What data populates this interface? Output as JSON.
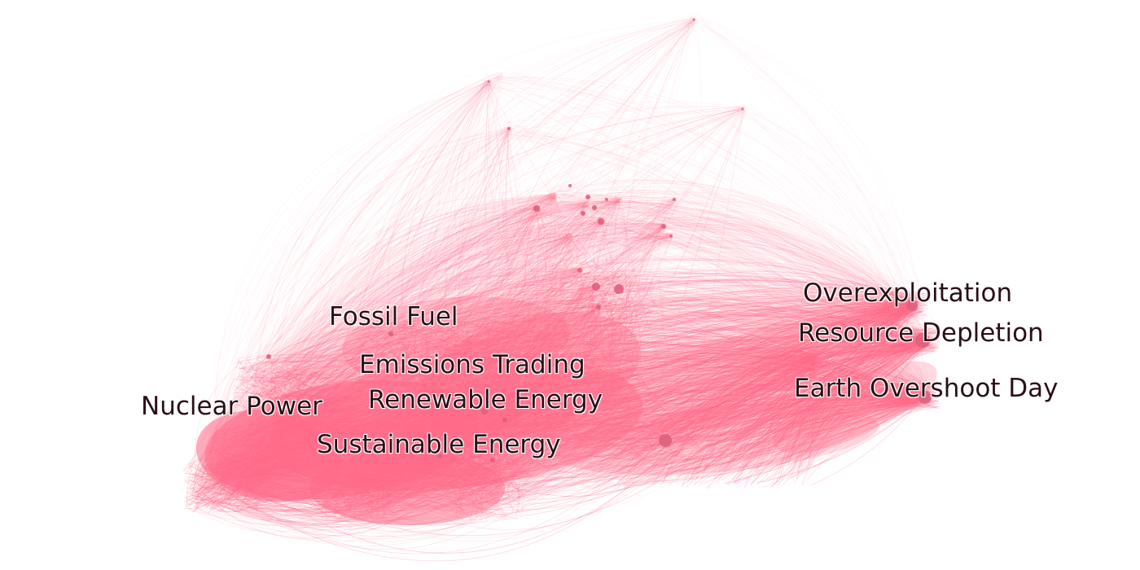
{
  "graph": {
    "edge_color": "#ff6a88",
    "node_color": "#e0607c",
    "label_color": "#2a0f17",
    "labels": {
      "nuclear_power": "Nuclear Power",
      "fossil_fuel": "Fossil Fuel",
      "emissions_trading": "Emissions Trading",
      "renewable_energy": "Renewable Energy",
      "sustainable_energy": "Sustainable Energy",
      "overexploitation": "Overexploitation",
      "resource_depletion": "Resource Depletion",
      "earth_overshoot_day": "Earth Overshoot Day"
    }
  }
}
